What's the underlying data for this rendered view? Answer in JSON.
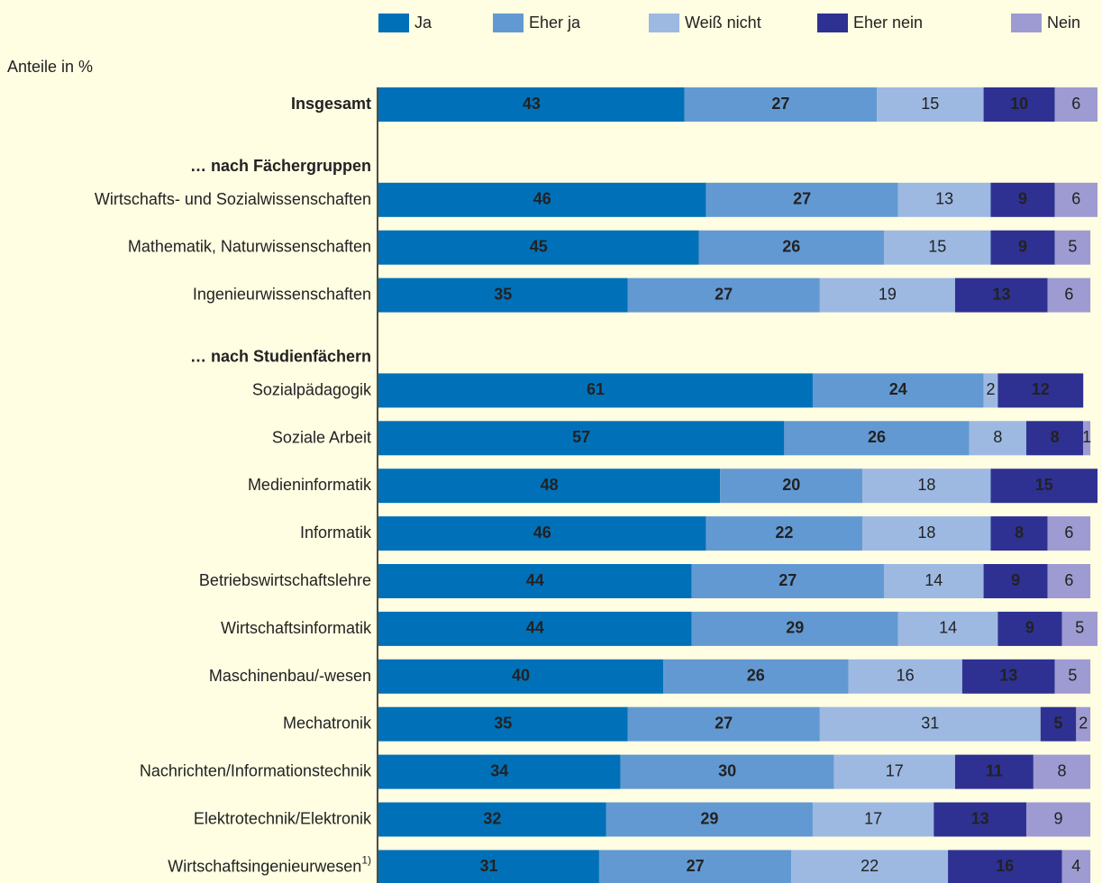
{
  "chart_data": {
    "type": "stacked_barh",
    "subtitle": "Anteile in %",
    "categories": [
      "Insgesamt",
      "… nach Fächergruppen",
      "Wirtschafts- und Sozialwissenschaften",
      "Mathematik, Naturwissenschaften",
      "Ingenieurwissenschaften",
      "… nach Studienfächern",
      "Sozialpädagogik",
      "Soziale Arbeit",
      "Medieninformatik",
      "Informatik",
      "Betriebswirtschaftslehre",
      "Wirtschaftsinformatik",
      "Maschinenbau/-wesen",
      "Mechatronik",
      "Nachrichten/Informationstechnik",
      "Elektrotechnik/Elektronik",
      "Wirtschaftsingenieurwesen"
    ],
    "category_footnotes": [
      null,
      null,
      null,
      null,
      null,
      null,
      null,
      null,
      null,
      null,
      null,
      null,
      null,
      null,
      null,
      null,
      "1)"
    ],
    "category_bold": [
      true,
      true,
      false,
      false,
      false,
      true,
      false,
      false,
      false,
      false,
      false,
      false,
      false,
      false,
      false,
      false,
      false
    ],
    "xlim": [
      0,
      101
    ],
    "series": [
      {
        "name": "Ja",
        "color": "#0071b8",
        "label_color": "#ffffff",
        "label_bold": true,
        "values": [
          43,
          null,
          46,
          45,
          35,
          null,
          61,
          57,
          48,
          46,
          44,
          44,
          40,
          35,
          34,
          32,
          31
        ]
      },
      {
        "name": "Eher ja",
        "color": "#6399d2",
        "label_color": "#ffffff",
        "label_bold": true,
        "values": [
          27,
          null,
          27,
          26,
          27,
          null,
          24,
          26,
          20,
          22,
          27,
          29,
          26,
          27,
          30,
          29,
          27
        ]
      },
      {
        "name": "Weiß nicht",
        "color": "#9db9e2",
        "label_color": "#222222",
        "label_bold": false,
        "values": [
          15,
          null,
          13,
          15,
          19,
          null,
          2,
          8,
          18,
          18,
          14,
          14,
          16,
          31,
          17,
          17,
          22
        ]
      },
      {
        "name": "Eher nein",
        "color": "#2e3192",
        "label_color": "#ffffff",
        "label_bold": true,
        "values": [
          10,
          null,
          9,
          9,
          13,
          null,
          12,
          8,
          15,
          8,
          9,
          9,
          13,
          5,
          11,
          13,
          16
        ]
      },
      {
        "name": "Nein",
        "color": "#9d9bd1",
        "label_color": "#222222",
        "label_bold": false,
        "values": [
          6,
          null,
          6,
          5,
          6,
          null,
          null,
          1,
          null,
          6,
          6,
          5,
          5,
          2,
          8,
          9,
          4
        ]
      }
    ]
  }
}
